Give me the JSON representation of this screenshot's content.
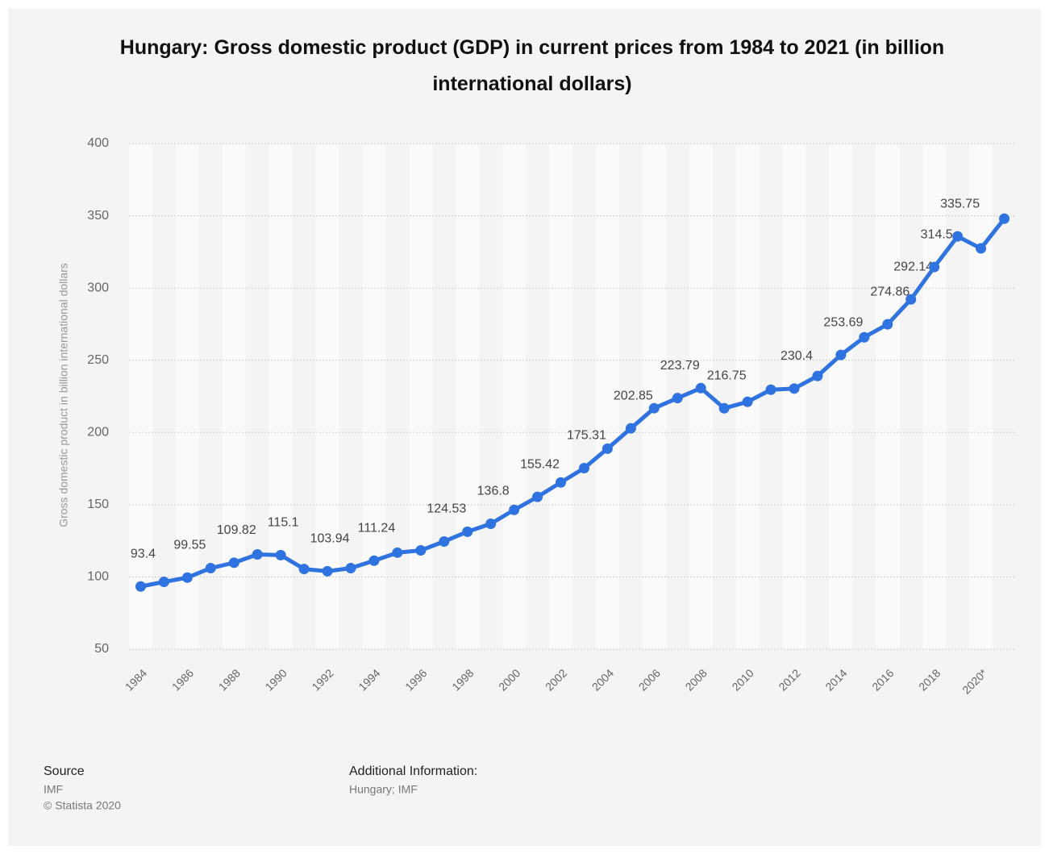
{
  "chart_data": {
    "type": "line",
    "title": "Hungary: Gross domestic product (GDP) in current prices from 1984 to 2021 (in billion international dollars)",
    "y_label": "Gross domestic product in billion international dollars",
    "categories": [
      "1984",
      null,
      "1986",
      null,
      "1988",
      null,
      "1990",
      null,
      "1992",
      null,
      "1994",
      null,
      "1996",
      null,
      "1998",
      null,
      "2000",
      null,
      "2002",
      null,
      "2004",
      null,
      "2006",
      null,
      "2008",
      null,
      "2010",
      null,
      "2012",
      null,
      "2014",
      null,
      "2016",
      null,
      "2018",
      null,
      "2020*",
      null
    ],
    "series": [
      {
        "name": "GDP",
        "color": "#2f73e0",
        "values": [
          93.4,
          96.6,
          99.55,
          106.1,
          109.82,
          115.6,
          115.1,
          105.5,
          103.94,
          106.1,
          111.24,
          116.8,
          118.4,
          124.53,
          131.3,
          136.8,
          146.4,
          155.42,
          165.4,
          175.31,
          188.8,
          202.85,
          216.8,
          223.79,
          230.7,
          216.75,
          221.2,
          229.6,
          230.4,
          239.1,
          253.69,
          265.9,
          274.86,
          292.14,
          314.5,
          335.75,
          327.4,
          348
        ],
        "value_labels": [
          "93.4",
          null,
          "99.55",
          null,
          "109.82",
          null,
          "115.1",
          null,
          "103.94",
          null,
          "111.24",
          null,
          null,
          "124.53",
          null,
          "136.8",
          null,
          "155.42",
          null,
          "175.31",
          null,
          "202.85",
          null,
          "223.79",
          null,
          "216.75",
          null,
          null,
          "230.4",
          null,
          "253.69",
          null,
          "274.86",
          "292.14",
          "314.5",
          "335.75",
          null,
          null
        ]
      }
    ],
    "ylim": [
      50,
      400
    ],
    "yticks": [
      50,
      100,
      150,
      200,
      250,
      300,
      350,
      400
    ],
    "grid": true
  },
  "footer": {
    "source_title": "Source",
    "source": "IMF",
    "copyright": "© Statista 2020",
    "info_title": "Additional Information:",
    "info": "Hungary; IMF"
  }
}
